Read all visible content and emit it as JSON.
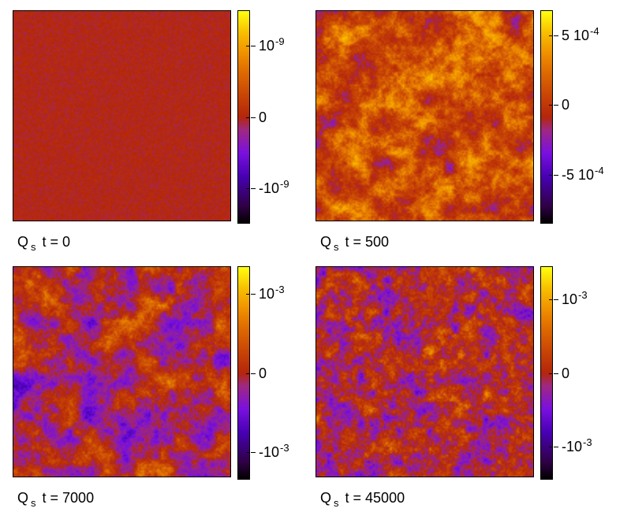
{
  "chart_data": [
    {
      "type": "heatmap",
      "caption": {
        "symbol": "Q",
        "subscript": "s",
        "label": "t = 0"
      },
      "colorbar": {
        "range": [
          -1.5e-09,
          1.5e-09
        ],
        "ticks": [
          {
            "value": 1e-09,
            "mantissa": "10",
            "exponent": "-9"
          },
          {
            "value": 0,
            "mantissa": "0",
            "exponent": ""
          },
          {
            "value": -1e-09,
            "mantissa": "-10",
            "exponent": "-9"
          }
        ]
      },
      "field_character": "uniform noise near zero"
    },
    {
      "type": "heatmap",
      "caption": {
        "symbol": "Q",
        "subscript": "s",
        "label": "t = 500"
      },
      "colorbar": {
        "range": [
          -0.00085,
          0.00068
        ],
        "ticks": [
          {
            "value": 0.0005,
            "mantissa": "5 10",
            "exponent": "-4"
          },
          {
            "value": 0,
            "mantissa": "0",
            "exponent": ""
          },
          {
            "value": -0.0005,
            "mantissa": "-5 10",
            "exponent": "-4"
          }
        ]
      },
      "field_character": "mostly positive patches with negative pockets"
    },
    {
      "type": "heatmap",
      "caption": {
        "symbol": "Q",
        "subscript": "s",
        "label": "t = 7000"
      },
      "colorbar": {
        "range": [
          -0.00135,
          0.00135
        ],
        "ticks": [
          {
            "value": 0.001,
            "mantissa": "10",
            "exponent": "-3"
          },
          {
            "value": 0,
            "mantissa": "0",
            "exponent": ""
          },
          {
            "value": -0.001,
            "mantissa": "-10",
            "exponent": "-3"
          }
        ]
      },
      "field_character": "mixed positive and negative domains"
    },
    {
      "type": "heatmap",
      "caption": {
        "symbol": "Q",
        "subscript": "s",
        "label": "t = 45000"
      },
      "colorbar": {
        "range": [
          -0.00145,
          0.00145
        ],
        "ticks": [
          {
            "value": 0.001,
            "mantissa": "10",
            "exponent": "-3"
          },
          {
            "value": 0,
            "mantissa": "0",
            "exponent": ""
          },
          {
            "value": -0.001,
            "mantissa": "-10",
            "exponent": "-3"
          }
        ]
      },
      "field_character": "fine-grained mixed domains"
    }
  ],
  "colormap": [
    "#000000",
    "#4800b4",
    "#b4260a",
    "#f09000",
    "#ffff10"
  ]
}
